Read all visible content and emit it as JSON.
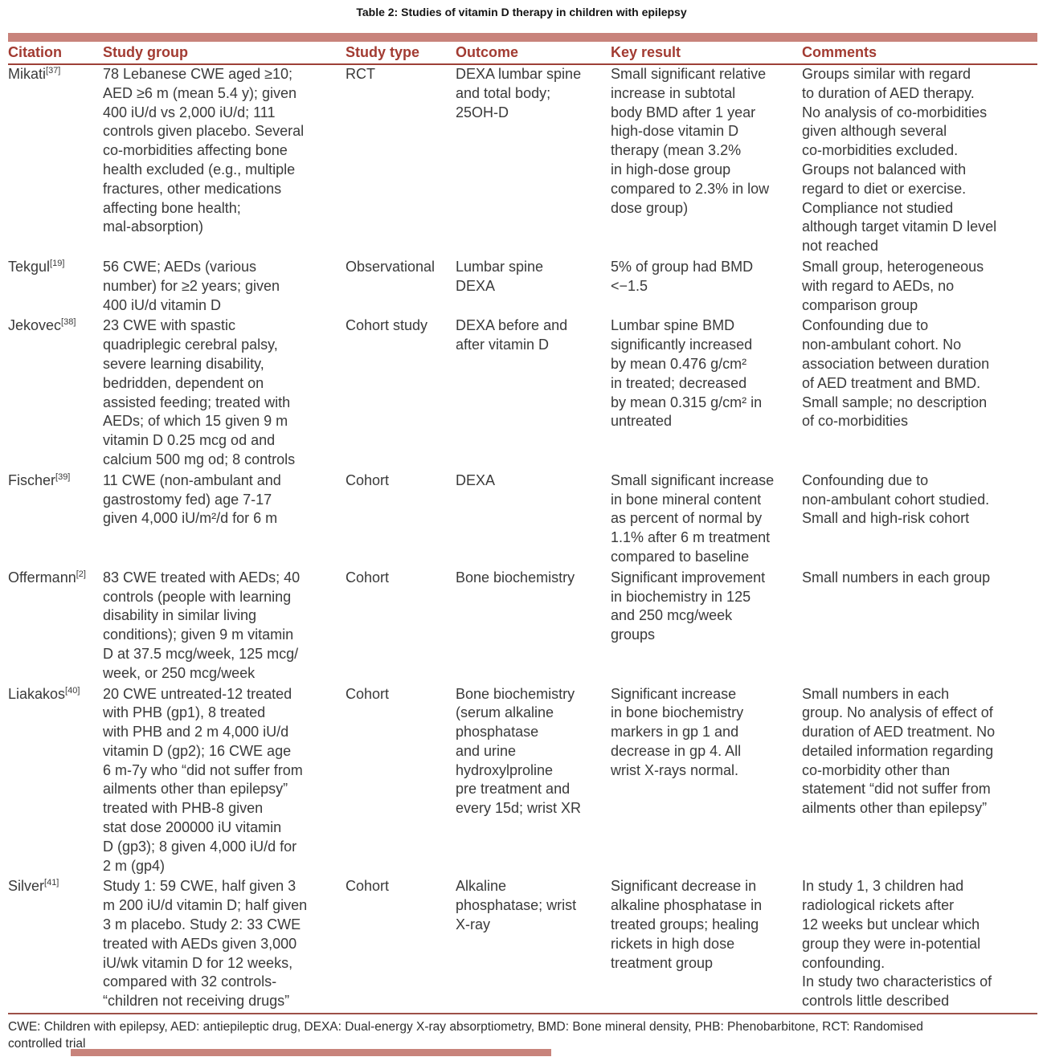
{
  "title": "Table 2: Studies of vitamin D therapy in children with epilepsy",
  "colors": {
    "accent_bar": "#c8837b",
    "header_text": "#a23b32",
    "rule": "#9d4037",
    "body_text": "#3a3a3a"
  },
  "table": {
    "columns": [
      "Citation",
      "Study group",
      "Study type",
      "Outcome",
      "Key result",
      "Comments"
    ],
    "rows": [
      {
        "citation": "Mikati",
        "ref": "[37]",
        "study_group": "78 Lebanese CWE aged ≥10;\nAED ≥6 m (mean 5.4 y); given\n400 iU/d vs 2,000 iU/d; 111\ncontrols given placebo. Several\nco-morbidities affecting bone\nhealth excluded (e.g., multiple\nfractures, other medications\naffecting bone health;\nmal-absorption)",
        "study_type": "RCT",
        "outcome": "DEXA lumbar spine\nand total body;\n25OH-D",
        "key_result": "Small significant relative\nincrease in subtotal\nbody BMD after 1 year\nhigh-dose vitamin D\ntherapy (mean 3.2%\nin high-dose group\ncompared to 2.3% in low\ndose group)",
        "comments": "Groups similar with regard\nto duration of AED therapy.\nNo analysis of co-morbidities\ngiven although several\nco-morbidities excluded.\nGroups not balanced with\nregard to diet or exercise.\nCompliance not studied\nalthough target vitamin D level\nnot reached"
      },
      {
        "citation": "Tekgul",
        "ref": "[19]",
        "study_group": "56 CWE; AEDs (various\nnumber) for ≥2 years; given\n400 iU/d vitamin D",
        "study_type": "Observational",
        "outcome": "Lumbar spine\nDEXA",
        "key_result": "5% of group had BMD\n<−1.5",
        "comments": "Small group, heterogeneous\nwith regard to AEDs, no\ncomparison group"
      },
      {
        "citation": "Jekovec",
        "ref": "[38]",
        "study_group": "23 CWE with spastic\nquadriplegic cerebral palsy,\nsevere learning disability,\nbedridden, dependent on\nassisted feeding; treated with\nAEDs; of which 15 given 9 m\nvitamin D 0.25 mcg od and\ncalcium 500 mg od; 8 controls",
        "study_type": "Cohort study",
        "outcome": "DEXA before and\nafter vitamin D",
        "key_result": "Lumbar spine BMD\nsignificantly increased\nby mean 0.476 g/cm²\nin treated; decreased\nby mean 0.315 g/cm² in\nuntreated",
        "comments": "Confounding due to\nnon-ambulant cohort. No\nassociation between duration\nof AED treatment and BMD.\nSmall sample; no description\nof co-morbidities"
      },
      {
        "citation": "Fischer",
        "ref": "[39]",
        "study_group": "11 CWE (non-ambulant and\ngastrostomy fed) age 7-17\ngiven 4,000 iU/m²/d for 6 m",
        "study_type": "Cohort",
        "outcome": "DEXA",
        "key_result": "Small significant increase\nin bone mineral content\nas percent of normal by\n1.1% after 6 m treatment\ncompared to baseline",
        "comments": "Confounding due to\nnon-ambulant cohort studied.\nSmall and high-risk cohort"
      },
      {
        "citation": "Offermann",
        "ref": "[2]",
        "study_group": "83 CWE treated with AEDs; 40\ncontrols (people with learning\ndisability in similar living\nconditions); given 9 m vitamin\nD at 37.5 mcg/week, 125 mcg/\nweek, or 250 mcg/week",
        "study_type": "Cohort",
        "outcome": "Bone biochemistry",
        "key_result": "Significant improvement\nin biochemistry in 125\nand 250 mcg/week\ngroups",
        "comments": "Small numbers in each group"
      },
      {
        "citation": "Liakakos",
        "ref": "[40]",
        "study_group": "20 CWE untreated-12 treated\nwith PHB (gp1), 8 treated\nwith PHB and 2 m 4,000 iU/d\nvitamin D (gp2); 16 CWE age\n6 m-7y who “did not suffer from\nailments other than epilepsy”\ntreated with PHB-8 given\nstat dose 200000 iU vitamin\nD (gp3); 8 given 4,000 iU/d for\n2 m (gp4)",
        "study_type": "Cohort",
        "outcome": "Bone biochemistry\n(serum alkaline\nphosphatase\nand urine\nhydroxylproline\npre treatment and\nevery 15d; wrist XR",
        "key_result": "Significant increase\nin bone biochemistry\nmarkers in gp 1 and\ndecrease in gp 4. All\nwrist X-rays normal.",
        "comments": "Small numbers in each\ngroup. No analysis of effect of\nduration of AED treatment. No\ndetailed information regarding\nco-morbidity other than\nstatement “did not suffer from\nailments other than epilepsy”"
      },
      {
        "citation": "Silver",
        "ref": "[41]",
        "study_group": "Study 1: 59 CWE, half given 3\nm 200 iU/d vitamin D; half given\n3 m placebo. Study 2: 33 CWE\ntreated with AEDs given 3,000\niU/wk vitamin D for 12 weeks,\ncompared with 32 controls-\n“children not receiving drugs”",
        "study_type": "Cohort",
        "outcome": "Alkaline\nphosphatase; wrist\nX-ray",
        "key_result": "Significant decrease in\nalkaline phosphatase in\ntreated groups; healing\nrickets in high dose\ntreatment group",
        "comments": "In study 1, 3 children had\nradiological rickets after\n12 weeks but unclear which\ngroup they were in-potential\nconfounding.\nIn study two characteristics of\ncontrols little described"
      }
    ]
  },
  "footnote": "CWE: Children with epilepsy, AED: antiepileptic drug, DEXA: Dual-energy X-ray absorptiometry, BMD: Bone mineral density, PHB: Phenobarbitone, RCT: Randomised\ncontrolled trial"
}
